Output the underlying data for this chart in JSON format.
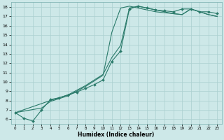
{
  "xlabel": "Humidex (Indice chaleur)",
  "background_color": "#cde8e8",
  "grid_color": "#aacfcf",
  "line_color": "#2a7a6a",
  "xlim": [
    -0.5,
    23.5
  ],
  "ylim": [
    5.5,
    18.5
  ],
  "xticks": [
    0,
    1,
    2,
    3,
    4,
    5,
    6,
    7,
    8,
    9,
    10,
    11,
    12,
    13,
    14,
    15,
    16,
    17,
    18,
    19,
    20,
    21,
    22,
    23
  ],
  "yticks": [
    6,
    7,
    8,
    9,
    10,
    11,
    12,
    13,
    14,
    15,
    16,
    17,
    18
  ],
  "s1_x": [
    0,
    1,
    2,
    3,
    4,
    5,
    6,
    7,
    8,
    9,
    10,
    11,
    12,
    13,
    14,
    15,
    16,
    17,
    18,
    19,
    20,
    21,
    22,
    23
  ],
  "s1_y": [
    6.7,
    6.1,
    5.8,
    7.0,
    8.1,
    8.3,
    8.6,
    8.9,
    9.3,
    9.7,
    10.2,
    12.2,
    13.3,
    17.8,
    18.1,
    17.9,
    17.7,
    17.6,
    17.5,
    17.8,
    17.8,
    17.5,
    17.5,
    17.3
  ],
  "s2_x": [
    0,
    3,
    4,
    5,
    6,
    7,
    8,
    9,
    10,
    11,
    12,
    13,
    14,
    15,
    16,
    17,
    18,
    19,
    20,
    21,
    22,
    23
  ],
  "s2_y": [
    6.7,
    7.2,
    7.9,
    8.2,
    8.5,
    9.0,
    9.5,
    10.1,
    10.7,
    15.3,
    17.9,
    18.1,
    17.9,
    17.7,
    17.5,
    17.4,
    17.3,
    17.2,
    17.8,
    17.5,
    17.2,
    17.0
  ],
  "s3_x": [
    0,
    4,
    5,
    6,
    7,
    8,
    9,
    10,
    11,
    12,
    13,
    14,
    15,
    16,
    17,
    18,
    19,
    20,
    21,
    22,
    23
  ],
  "s3_y": [
    6.7,
    8.0,
    8.3,
    8.6,
    9.1,
    9.6,
    10.2,
    10.8,
    12.6,
    13.9,
    17.9,
    18.1,
    17.9,
    17.7,
    17.5,
    17.3,
    17.2,
    17.8,
    17.5,
    17.2,
    17.0
  ]
}
